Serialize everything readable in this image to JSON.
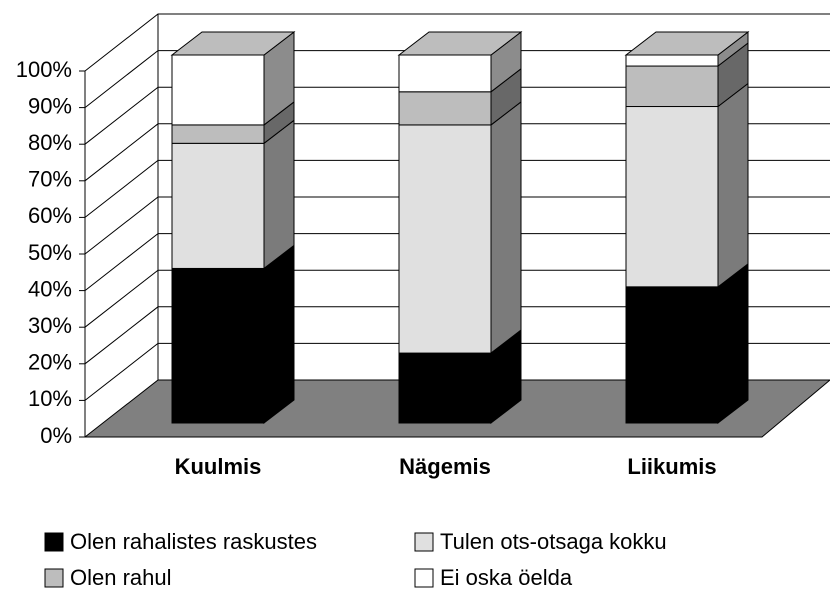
{
  "chart_data": {
    "type": "bar",
    "stacked": true,
    "three_d": true,
    "categories": [
      "Kuulmis",
      "Nägemis",
      "Liikumis"
    ],
    "series": [
      {
        "name": "Olen rahalistes raskustes",
        "color": "#000000",
        "values": [
          42,
          19,
          37
        ]
      },
      {
        "name": "Tulen ots-otsaga kokku",
        "color": "#e0e0e0",
        "values": [
          34,
          62,
          49
        ]
      },
      {
        "name": "Olen rahul",
        "color": "#bdbdbd",
        "values": [
          5,
          9,
          11
        ]
      },
      {
        "name": "Ei oska öelda",
        "color": "#ffffff",
        "values": [
          19,
          10,
          3
        ]
      }
    ],
    "ylim": [
      0,
      100
    ],
    "yticks": [
      {
        "value": 0,
        "label": "0%"
      },
      {
        "value": 10,
        "label": "10%"
      },
      {
        "value": 20,
        "label": "20%"
      },
      {
        "value": 30,
        "label": "30%"
      },
      {
        "value": 40,
        "label": "40%"
      },
      {
        "value": 50,
        "label": "50%"
      },
      {
        "value": 60,
        "label": "60%"
      },
      {
        "value": 70,
        "label": "70%"
      },
      {
        "value": 80,
        "label": "80%"
      },
      {
        "value": 90,
        "label": "90%"
      },
      {
        "value": 100,
        "label": "100%"
      }
    ],
    "grid": true
  }
}
